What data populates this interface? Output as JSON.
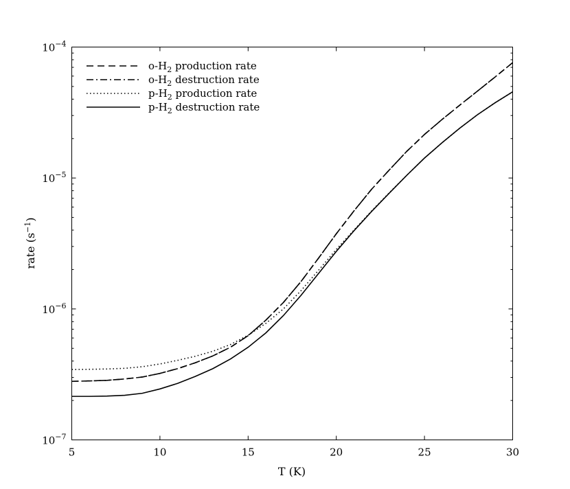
{
  "chart_data": {
    "type": "line",
    "xlabel": "T (K)",
    "ylabel": "rate (s",
    "ylabel_sup": "−1",
    "ylabel_end": ")",
    "yscale": "log",
    "xlim": [
      5,
      30
    ],
    "ylim": [
      1e-07,
      0.0001
    ],
    "x_ticks": [
      5,
      10,
      15,
      20,
      25,
      30
    ],
    "y_ticks": [
      {
        "value": 1e-07,
        "base": "10",
        "exp": "−7"
      },
      {
        "value": 1e-06,
        "base": "10",
        "exp": "−6"
      },
      {
        "value": 1e-05,
        "base": "10",
        "exp": "−5"
      },
      {
        "value": 0.0001,
        "base": "10",
        "exp": "−4"
      }
    ],
    "legend_position": "top-left",
    "x": [
      5,
      6,
      7,
      8,
      9,
      10,
      11,
      12,
      13,
      14,
      15,
      16,
      17,
      18,
      19,
      20,
      21,
      22,
      23,
      24,
      25,
      26,
      27,
      28,
      29,
      30
    ],
    "series": [
      {
        "label_pre": "o-H",
        "label_sub": "2",
        "label_post": " production rate",
        "dash": "10,6",
        "values": [
          2.8e-07,
          2.82e-07,
          2.85e-07,
          2.92e-07,
          3.02e-07,
          3.22e-07,
          3.5e-07,
          3.88e-07,
          4.38e-07,
          5.1e-07,
          6.25e-07,
          8.2e-07,
          1.12e-06,
          1.62e-06,
          2.45e-06,
          3.75e-06,
          5.6e-06,
          8.2e-06,
          1.15e-05,
          1.6e-05,
          2.15e-05,
          2.8e-05,
          3.6e-05,
          4.6e-05,
          5.9e-05,
          7.6e-05
        ]
      },
      {
        "label_pre": "o-H",
        "label_sub": "2",
        "label_post": " destruction rate",
        "dash": "10,4,2,4",
        "values": [
          2.8e-07,
          2.82e-07,
          2.85e-07,
          2.92e-07,
          3.02e-07,
          3.22e-07,
          3.5e-07,
          3.88e-07,
          4.38e-07,
          5.1e-07,
          6.25e-07,
          8.2e-07,
          1.12e-06,
          1.62e-06,
          2.45e-06,
          3.75e-06,
          5.6e-06,
          8.2e-06,
          1.15e-05,
          1.6e-05,
          2.15e-05,
          2.8e-05,
          3.6e-05,
          4.6e-05,
          5.9e-05,
          7.6e-05
        ]
      },
      {
        "label_pre": "p-H",
        "label_sub": "2",
        "label_post": " production rate",
        "dash": "1.5,3.5",
        "values": [
          3.45e-07,
          3.46e-07,
          3.48e-07,
          3.52e-07,
          3.62e-07,
          3.8e-07,
          4.05e-07,
          4.35e-07,
          4.75e-07,
          5.35e-07,
          6.3e-07,
          7.75e-07,
          1e-06,
          1.38e-06,
          1.98e-06,
          2.85e-06,
          4e-06,
          5.6e-06,
          7.7e-06,
          1.05e-05,
          1.42e-05,
          1.86e-05,
          2.4e-05,
          3.04e-05,
          3.75e-05,
          4.55e-05
        ]
      },
      {
        "label_pre": "p-H",
        "label_sub": "2",
        "label_post": " destruction rate",
        "dash": "",
        "values": [
          2.15e-07,
          2.15e-07,
          2.16e-07,
          2.19e-07,
          2.27e-07,
          2.45e-07,
          2.7e-07,
          3.05e-07,
          3.5e-07,
          4.15e-07,
          5.1e-07,
          6.55e-07,
          8.9e-07,
          1.27e-06,
          1.87e-06,
          2.75e-06,
          3.95e-06,
          5.55e-06,
          7.65e-06,
          1.05e-05,
          1.42e-05,
          1.86e-05,
          2.4e-05,
          3.04e-05,
          3.75e-05,
          4.55e-05
        ]
      }
    ]
  }
}
